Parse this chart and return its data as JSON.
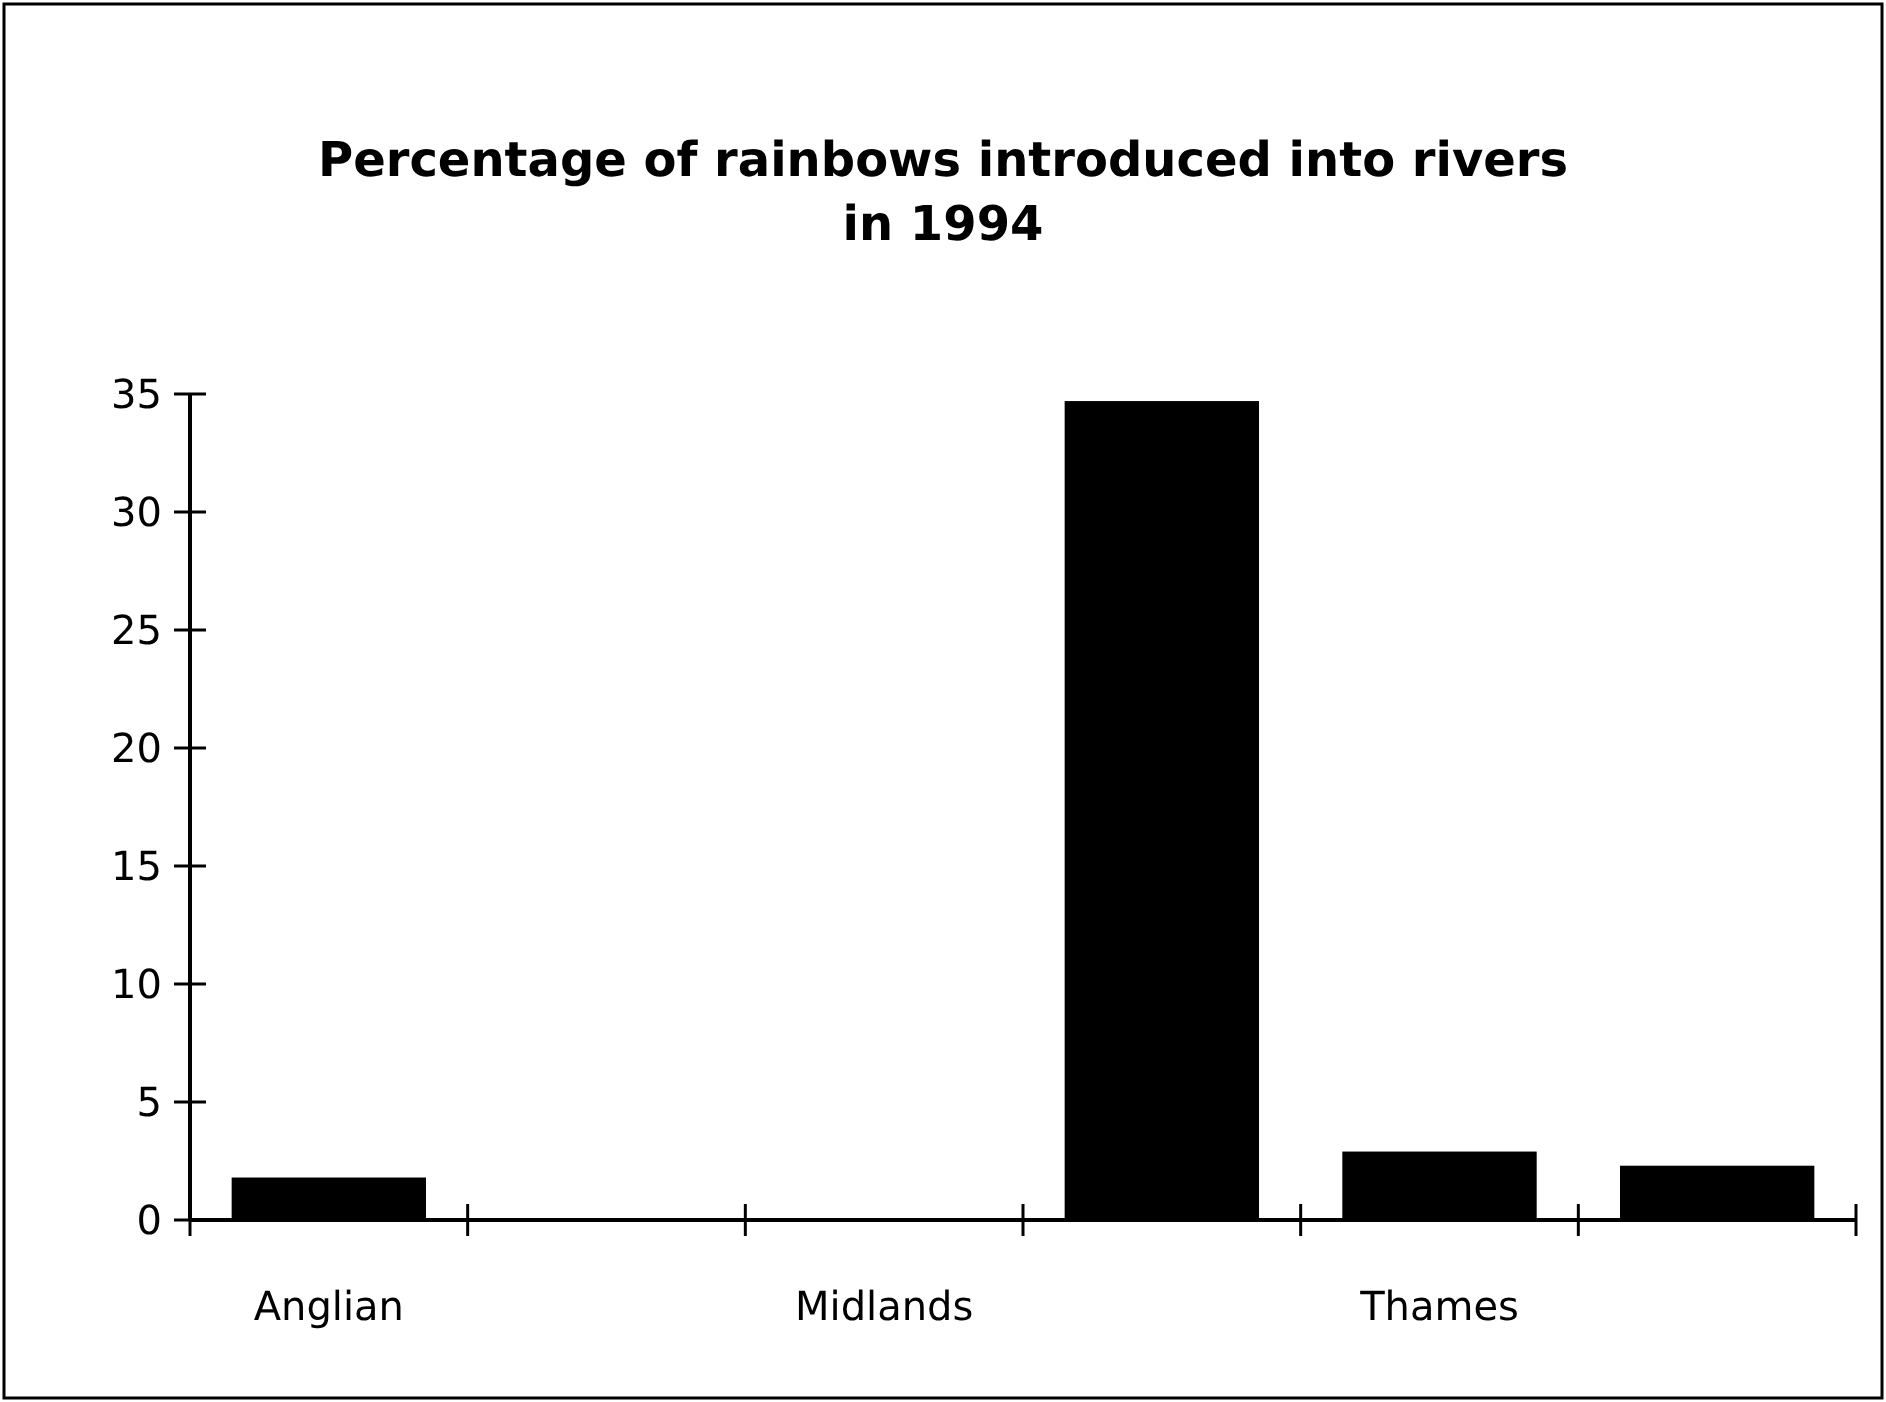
{
  "chart_data": {
    "type": "bar",
    "title": "Percentage of rainbows introduced into rivers\nin 1994",
    "categories": [
      "Anglian",
      null,
      "Midlands",
      null,
      "Thames",
      null
    ],
    "values": [
      1.8,
      0,
      0,
      34.7,
      2.9,
      2.3
    ],
    "color": "#000000",
    "ylim": [
      0,
      35
    ],
    "yticks": [
      0,
      5,
      10,
      15,
      20,
      25,
      30,
      35
    ],
    "grid": false
  }
}
